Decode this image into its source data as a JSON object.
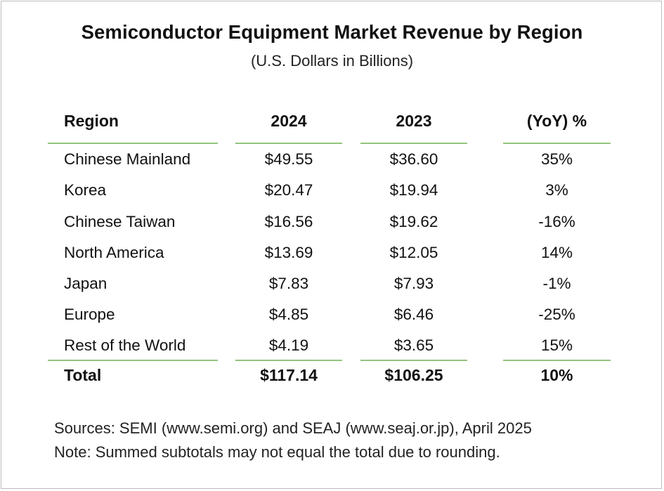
{
  "title": "Semiconductor Equipment Market Revenue by Region",
  "subtitle": "(U.S. Dollars in Billions)",
  "colors": {
    "rule": "#92c47d",
    "text": "#111111",
    "border": "#bdbdbd"
  },
  "table": {
    "headers": [
      "Region",
      "2024",
      "2023",
      "(YoY) %"
    ],
    "rows": [
      {
        "region": "Chinese Mainland",
        "y2024": "$49.55",
        "y2023": "$36.60",
        "yoy": "35%"
      },
      {
        "region": "Korea",
        "y2024": "$20.47",
        "y2023": "$19.94",
        "yoy": "3%"
      },
      {
        "region": "Chinese Taiwan",
        "y2024": "$16.56",
        "y2023": "$19.62",
        "yoy": "-16%"
      },
      {
        "region": "North America",
        "y2024": "$13.69",
        "y2023": "$12.05",
        "yoy": "14%"
      },
      {
        "region": "Japan",
        "y2024": "$7.83",
        "y2023": "$7.93",
        "yoy": "-1%"
      },
      {
        "region": "Europe",
        "y2024": "$4.85",
        "y2023": "$6.46",
        "yoy": "-25%"
      },
      {
        "region": "Rest of the World",
        "y2024": "$4.19",
        "y2023": "$3.65",
        "yoy": "15%"
      }
    ],
    "total": {
      "region": "Total",
      "y2024": "$117.14",
      "y2023": "$106.25",
      "yoy": "10%"
    }
  },
  "notes": {
    "sources": "Sources: SEMI (www.semi.org) and SEAJ (www.seaj.or.jp), April 2025",
    "note": "Note: Summed subtotals may not equal the total due to rounding."
  },
  "chart_data": {
    "type": "table",
    "title": "Semiconductor Equipment Market Revenue by Region",
    "subtitle": "(U.S. Dollars in Billions)",
    "columns": [
      "Region",
      "2024",
      "2023",
      "(YoY) %"
    ],
    "categories": [
      "Chinese Mainland",
      "Korea",
      "Chinese Taiwan",
      "North America",
      "Japan",
      "Europe",
      "Rest of the World",
      "Total"
    ],
    "series": [
      {
        "name": "2024",
        "values": [
          49.55,
          20.47,
          16.56,
          13.69,
          7.83,
          4.85,
          4.19,
          117.14
        ]
      },
      {
        "name": "2023",
        "values": [
          36.6,
          19.94,
          19.62,
          12.05,
          7.93,
          6.46,
          3.65,
          106.25
        ]
      },
      {
        "name": "(YoY) %",
        "values": [
          35,
          3,
          -16,
          14,
          -1,
          -25,
          15,
          10
        ]
      }
    ]
  }
}
